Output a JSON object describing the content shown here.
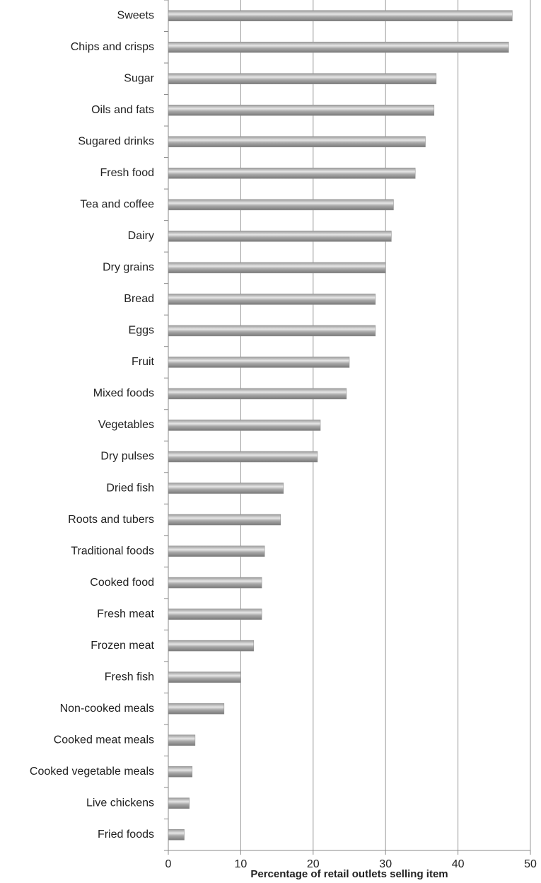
{
  "chart_data": {
    "type": "barh",
    "x_label": "Percentage of retail outlets selling item",
    "categories": [
      "Sweets",
      "Chips and crisps",
      "Sugar",
      "Oils and fats",
      "Sugared drinks",
      "Fresh food",
      "Tea and coffee",
      "Dairy",
      "Dry grains",
      "Bread",
      "Eggs",
      "Fruit",
      "Mixed foods",
      "Vegetables",
      "Dry pulses",
      "Dried fish",
      "Roots and tubers",
      "Traditional foods",
      "Cooked food",
      "Fresh meat",
      "Frozen meat",
      "Fresh fish",
      "Non-cooked meals",
      "Cooked meat meals",
      "Cooked vegetable meals",
      "Live chickens",
      "Fried foods"
    ],
    "values": [
      47.5,
      47,
      37,
      36.7,
      35.5,
      34.1,
      31.1,
      30.8,
      30,
      28.6,
      28.6,
      25,
      24.6,
      21,
      20.6,
      15.9,
      15.5,
      13.3,
      12.9,
      12.9,
      11.8,
      10,
      7.7,
      3.7,
      3.3,
      2.9,
      2.2
    ],
    "color": "#8c8c8c",
    "xlim": [
      0,
      50
    ],
    "xticks": [
      0,
      10,
      20,
      30,
      40,
      50
    ],
    "grid": true
  }
}
